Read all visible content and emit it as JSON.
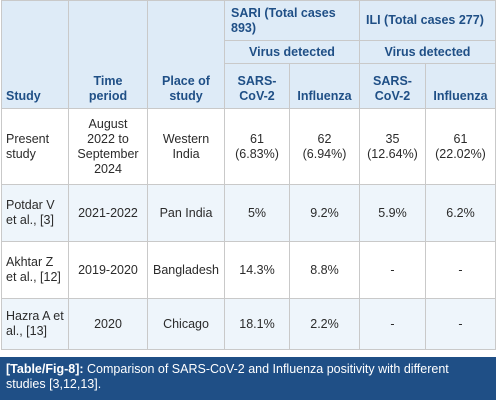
{
  "table": {
    "header": {
      "study": "Study",
      "time_period": "Time period",
      "place": "Place of study",
      "sari_group": "SARI (Total cases 893)",
      "ili_group": "ILI (Total cases 277)",
      "sari_virus": "Virus detected",
      "ili_virus": "Virus detected",
      "sari_sars": "SARS-CoV-2",
      "sari_flu": "Influenza",
      "ili_sars": "SARS-CoV-2",
      "ili_flu": "Influenza"
    },
    "rows": [
      {
        "study": "Present study",
        "time": "August 2022 to September 2024",
        "place": "Western India",
        "sari_sars": "61 (6.83%)",
        "sari_flu": "62 (6.94%)",
        "ili_sars": "35 (12.64%)",
        "ili_flu": "61 (22.02%)"
      },
      {
        "study": "Potdar V et al., [3]",
        "time": "2021-2022",
        "place": "Pan India",
        "sari_sars": "5%",
        "sari_flu": "9.2%",
        "ili_sars": "5.9%",
        "ili_flu": "6.2%"
      },
      {
        "study": "Akhtar Z et al., [12]",
        "time": "2019-2020",
        "place": "Bangladesh",
        "sari_sars": "14.3%",
        "sari_flu": "8.8%",
        "ili_sars": "-",
        "ili_flu": "-"
      },
      {
        "study": "Hazra A et al., [13]",
        "time": "2020",
        "place": "Chicago",
        "sari_sars": "18.1%",
        "sari_flu": "2.2%",
        "ili_sars": "-",
        "ili_flu": "-"
      }
    ]
  },
  "caption": {
    "label": "[Table/Fig-8]:",
    "text": " Comparison of SARS-CoV-2 and Influenza positivity with different studies [3,12,13]."
  }
}
